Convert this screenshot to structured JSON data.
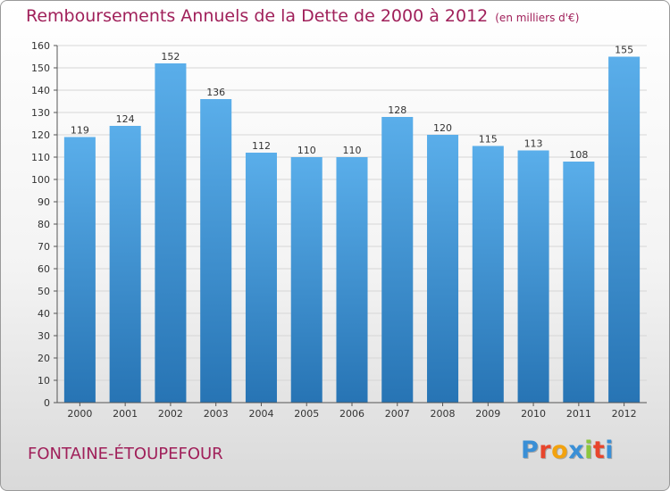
{
  "header": {
    "title": "Remboursements Annuels de la Dette de 2000 à 2012",
    "unit": "(en milliers d'€)"
  },
  "footer": {
    "commune": "FONTAINE-ÉTOUPEFOUR",
    "logo_letters": [
      "P",
      "r",
      "o",
      "x",
      "i",
      "t",
      "i"
    ],
    "logo_colors": [
      "#3a8fd6",
      "#e8452c",
      "#f2a20f",
      "#3a8fd6",
      "#8cc63e",
      "#e8452c",
      "#3a8fd6"
    ]
  },
  "colors": {
    "title": "#a0205a",
    "bar_top": "#5aaeea",
    "bar_bottom": "#2774b4"
  },
  "chart_data": {
    "type": "bar",
    "title": "Remboursements Annuels de la Dette de 2000 à 2012",
    "categories": [
      "2000",
      "2001",
      "2002",
      "2003",
      "2004",
      "2005",
      "2006",
      "2007",
      "2008",
      "2009",
      "2010",
      "2011",
      "2012"
    ],
    "values": [
      119,
      124,
      152,
      136,
      112,
      110,
      110,
      128,
      120,
      115,
      113,
      108,
      155
    ],
    "ylim": [
      0,
      160
    ],
    "yticks": [
      0,
      10,
      20,
      30,
      40,
      50,
      60,
      70,
      80,
      90,
      100,
      110,
      120,
      130,
      140,
      150,
      160
    ],
    "grid": true,
    "xlabel": "",
    "ylabel": ""
  }
}
